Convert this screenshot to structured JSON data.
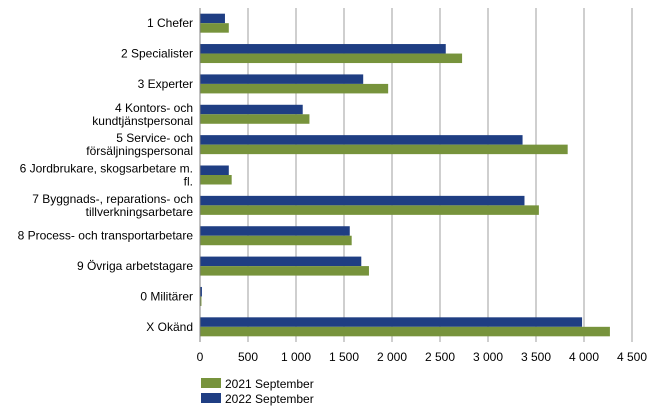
{
  "chart_data": {
    "type": "bar",
    "orientation": "horizontal",
    "categories": [
      [
        "1 Chefer"
      ],
      [
        "2 Specialister"
      ],
      [
        "3 Experter"
      ],
      [
        "4 Kontors- och",
        "kundtjänstpersonal"
      ],
      [
        "5 Service- och",
        "försäljningspersonal"
      ],
      [
        "6 Jordbrukare, skogsarbetare m.",
        "fl."
      ],
      [
        "7 Byggnads-, reparations- och",
        "tillverkningsarbetare"
      ],
      [
        "8 Process- och transportarbetare"
      ],
      [
        "9 Övriga arbetstagare"
      ],
      [
        "0 Militärer"
      ],
      [
        "X Okänd"
      ]
    ],
    "series": [
      {
        "name": "2021 September",
        "color": "#77933c",
        "values": [
          300,
          2730,
          1960,
          1140,
          3830,
          330,
          3530,
          1580,
          1760,
          15,
          4270
        ]
      },
      {
        "name": "2022 September",
        "color": "#1f3e83",
        "values": [
          260,
          2560,
          1700,
          1070,
          3360,
          300,
          3380,
          1560,
          1680,
          20,
          3980
        ]
      }
    ],
    "xlim": [
      0,
      4500
    ],
    "xticks": [
      0,
      500,
      1000,
      1500,
      2000,
      2500,
      3000,
      3500,
      4000,
      4500
    ],
    "xtick_labels": [
      "0",
      "500",
      "1 000",
      "1 500",
      "2 000",
      "2 500",
      "3 000",
      "3 500",
      "4 000",
      "4 500"
    ],
    "grid": "vertical",
    "legend_position": "bottom-left"
  }
}
